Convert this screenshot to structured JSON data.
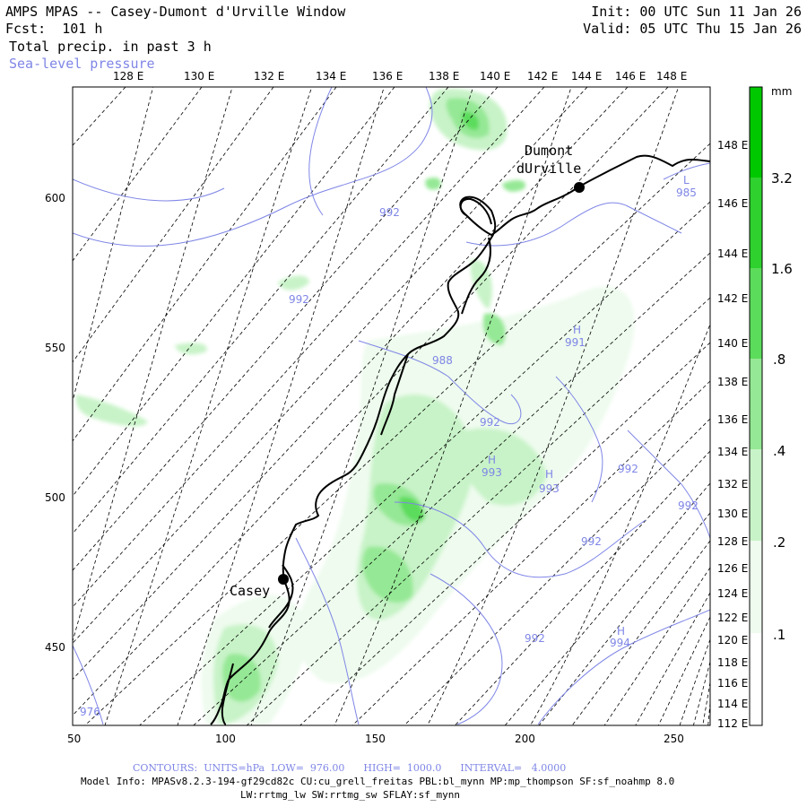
{
  "header": {
    "title": "AMPS MPAS -- Casey-Dumont d'Urville Window",
    "forecast": "Fcst:  101 h",
    "field": "Total precip. in past 3 h",
    "contour_field": "Sea-level pressure",
    "init": "Init: 00 UTC Sun 11 Jan 26",
    "valid": "Valid: 05 UTC Thu 15 Jan 26"
  },
  "colors": {
    "pressure": "#7f86e6",
    "coast": "#000000",
    "precip": [
      "#eefbee",
      "#c8f3c8",
      "#95e895",
      "#5bdc5b",
      "#2ed12e",
      "#00c800"
    ]
  },
  "top_lon_labels": [
    "128 E",
    "130 E",
    "132 E",
    "134 E",
    "136 E",
    "138 E",
    "140 E",
    "142 E",
    "144 E",
    "146 E",
    "148 E"
  ],
  "right_lon_labels": [
    "148 E",
    "146 E",
    "144 E",
    "142 E",
    "140 E",
    "138 E",
    "136 E",
    "134 E",
    "132 E",
    "130 E",
    "128 E",
    "126 E",
    "124 E",
    "122 E",
    "120 E",
    "118 E",
    "116 E",
    "114 E",
    "112 E"
  ],
  "x_axis": {
    "ticks": [
      "50",
      "100",
      "150",
      "200",
      "250"
    ]
  },
  "y_axis": {
    "ticks": [
      "600",
      "550",
      "500",
      "450"
    ]
  },
  "stations": [
    {
      "label": "Casey"
    },
    {
      "label": "Dumont",
      "label2": "dUrville"
    }
  ],
  "pressure_labels": [
    "992",
    "992",
    "988",
    "992",
    "993",
    "993",
    "992",
    "992",
    "992",
    "992",
    "976",
    "985",
    "991",
    "994"
  ],
  "highs": [
    "H",
    "H",
    "H",
    "H"
  ],
  "lows": [
    "L"
  ],
  "legend": {
    "unit": "mm",
    "labels": [
      "3.2",
      "1.6",
      ".8",
      ".4",
      ".2",
      ".1"
    ]
  },
  "footer": {
    "contours_line": "CONTOURS:  UNITS=hPa  LOW=  976.00      HIGH=  1000.0      INTERVAL=   4.0000",
    "model_info_1": "Model Info: MPASv8.2.3-194-gf29cd82c CU:cu_grell_freitas PBL:bl_mynn MP:mp_thompson SF:sf_noahmp 8.0",
    "model_info_2": "LW:rrtmg_lw SW:rrtmg_sw SFLAY:sf_mynn"
  }
}
